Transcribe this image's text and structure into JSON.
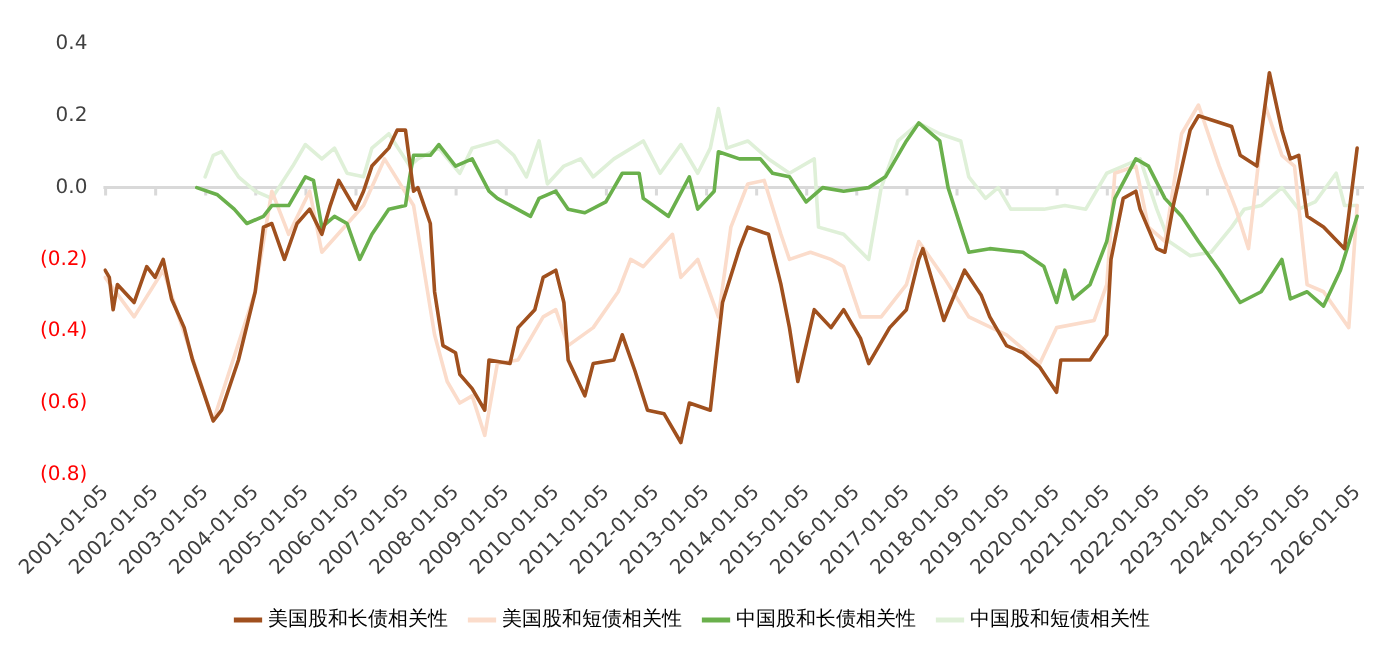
{
  "chart_data": {
    "type": "line",
    "xlim": [
      "2000-12-20",
      "2026-02-20"
    ],
    "xticks": [
      "2001-01-05",
      "2002-01-05",
      "2003-01-05",
      "2004-01-05",
      "2005-01-05",
      "2006-01-05",
      "2007-01-05",
      "2008-01-05",
      "2009-01-05",
      "2010-01-05",
      "2011-01-05",
      "2012-01-05",
      "2013-01-05",
      "2014-01-05",
      "2015-01-05",
      "2016-01-05",
      "2017-01-05",
      "2018-01-05",
      "2019-01-05",
      "2020-01-05",
      "2021-01-05",
      "2022-01-05",
      "2023-01-05",
      "2024-01-05",
      "2025-01-05",
      "2026-01-05"
    ],
    "ylim": [
      -0.8,
      0.4
    ],
    "yticks": [
      0.4,
      0.2,
      {
        "value": 0,
        "label": "0.0"
      },
      {
        "value": -0.2,
        "label": "(0.2)"
      },
      {
        "value": -0.4,
        "label": "(0.4)"
      },
      {
        "value": -0.6,
        "label": "(0.6)"
      },
      {
        "value": -0.8,
        "label": "(0.8)"
      }
    ],
    "grid": false,
    "ref_lines": [
      {
        "axis": "y",
        "value": 0,
        "color": "#d9d9d9"
      }
    ],
    "legend": "bottom",
    "marker": "none",
    "line_style": "solid",
    "series": [
      {
        "name": "美国股和长债相关性",
        "color": "#a0501e",
        "x": [
          "2001-01",
          "2001-02",
          "2001-03",
          "2001-04",
          "2001-08",
          "2001-11",
          "2002-01",
          "2002-03",
          "2002-05",
          "2002-08",
          "2002-10",
          "2003-03",
          "2003-05",
          "2003-09",
          "2004-01",
          "2004-03",
          "2004-05",
          "2004-08",
          "2004-11",
          "2005-02",
          "2005-05",
          "2005-07",
          "2005-09",
          "2006-01",
          "2006-03",
          "2006-05",
          "2006-09",
          "2006-11",
          "2007-01",
          "2007-03",
          "2007-04",
          "2007-07",
          "2007-08",
          "2007-10",
          "2008-01",
          "2008-02",
          "2008-05",
          "2008-08",
          "2008-09",
          "2009-02",
          "2009-04",
          "2009-08",
          "2009-10",
          "2010-01",
          "2010-03",
          "2010-04",
          "2010-08",
          "2010-10",
          "2011-03",
          "2011-05",
          "2011-08",
          "2011-11",
          "2012-03",
          "2012-07",
          "2012-09",
          "2013-02",
          "2013-05",
          "2013-09",
          "2013-11",
          "2014-04",
          "2014-07",
          "2014-09",
          "2014-11",
          "2015-03",
          "2015-07",
          "2015-10",
          "2016-02",
          "2016-04",
          "2016-09",
          "2017-01",
          "2017-04",
          "2017-05",
          "2017-10",
          "2018-03",
          "2018-07",
          "2018-09",
          "2019-01",
          "2019-05",
          "2019-09",
          "2020-01",
          "2020-02",
          "2020-09",
          "2021-01",
          "2021-02",
          "2021-05",
          "2021-08",
          "2021-09",
          "2022-01",
          "2022-03",
          "2022-05",
          "2022-09",
          "2022-11",
          "2023-07",
          "2023-09",
          "2024-01",
          "2024-04",
          "2024-07",
          "2024-09",
          "2024-11",
          "2025-01",
          "2025-05",
          "2025-10",
          "2026-01"
        ],
        "values": [
          -0.23,
          -0.25,
          -0.34,
          -0.27,
          -0.32,
          -0.22,
          -0.25,
          -0.2,
          -0.31,
          -0.39,
          -0.48,
          -0.65,
          -0.62,
          -0.48,
          -0.29,
          -0.11,
          -0.1,
          -0.2,
          -0.1,
          -0.06,
          -0.13,
          -0.05,
          0.02,
          -0.06,
          -0.01,
          0.06,
          0.11,
          0.16,
          0.16,
          -0.01,
          0,
          -0.1,
          -0.29,
          -0.44,
          -0.46,
          -0.52,
          -0.56,
          -0.62,
          -0.48,
          -0.49,
          -0.39,
          -0.34,
          -0.25,
          -0.23,
          -0.32,
          -0.48,
          -0.58,
          -0.49,
          -0.48,
          -0.41,
          -0.51,
          -0.62,
          -0.63,
          -0.71,
          -0.6,
          -0.62,
          -0.32,
          -0.17,
          -0.11,
          -0.13,
          -0.27,
          -0.39,
          -0.54,
          -0.34,
          -0.39,
          -0.34,
          -0.42,
          -0.49,
          -0.39,
          -0.34,
          -0.2,
          -0.17,
          -0.37,
          -0.23,
          -0.3,
          -0.36,
          -0.44,
          -0.46,
          -0.5,
          -0.57,
          -0.48,
          -0.48,
          -0.41,
          -0.2,
          -0.03,
          -0.01,
          -0.06,
          -0.17,
          -0.18,
          -0.05,
          0.16,
          0.2,
          0.17,
          0.09,
          0.06,
          0.32,
          0.16,
          0.08,
          0.09,
          -0.08,
          -0.11,
          -0.17,
          0.11
        ]
      },
      {
        "name": "美国股和短债相关性",
        "color": "#fbdccb",
        "x": [
          "2001-01",
          "2001-08",
          "2002-03",
          "2002-09",
          "2003-03",
          "2004-01",
          "2004-05",
          "2004-09",
          "2005-02",
          "2005-05",
          "2006-03",
          "2006-08",
          "2007-03",
          "2007-08",
          "2007-11",
          "2008-02",
          "2008-05",
          "2008-08",
          "2008-11",
          "2009-04",
          "2009-10",
          "2010-01",
          "2010-04",
          "2010-10",
          "2011-04",
          "2011-07",
          "2011-10",
          "2012-05",
          "2012-07",
          "2012-11",
          "2013-04",
          "2013-07",
          "2013-11",
          "2014-03",
          "2014-07",
          "2014-09",
          "2015-02",
          "2015-07",
          "2015-10",
          "2016-02",
          "2016-07",
          "2017-01",
          "2017-04",
          "2017-10",
          "2018-04",
          "2019-01",
          "2019-09",
          "2020-01",
          "2020-10",
          "2021-01",
          "2021-03",
          "2021-08",
          "2021-11",
          "2022-03",
          "2022-07",
          "2022-11",
          "2023-04",
          "2023-08",
          "2023-11",
          "2024-03",
          "2024-07",
          "2024-10",
          "2025-01",
          "2025-05",
          "2025-11",
          "2026-01"
        ],
        "values": [
          -0.25,
          -0.36,
          -0.23,
          -0.44,
          -0.65,
          -0.29,
          -0.01,
          -0.13,
          -0.01,
          -0.18,
          -0.05,
          0.08,
          -0.05,
          -0.41,
          -0.54,
          -0.6,
          -0.58,
          -0.69,
          -0.49,
          -0.48,
          -0.36,
          -0.34,
          -0.44,
          -0.39,
          -0.29,
          -0.2,
          -0.22,
          -0.13,
          -0.25,
          -0.2,
          -0.36,
          -0.11,
          0.01,
          0.02,
          -0.13,
          -0.2,
          -0.18,
          -0.2,
          -0.22,
          -0.36,
          -0.36,
          -0.27,
          -0.15,
          -0.25,
          -0.36,
          -0.41,
          -0.49,
          -0.39,
          -0.37,
          -0.27,
          0.04,
          0.06,
          -0.11,
          -0.15,
          0.15,
          0.23,
          0.06,
          -0.06,
          -0.17,
          0.23,
          0.09,
          0.06,
          -0.27,
          -0.29,
          -0.39,
          -0.05
        ]
      },
      {
        "name": "中国股和长债相关性",
        "color": "#6ab04c",
        "x": [
          "2002-11",
          "2003-04",
          "2003-08",
          "2003-11",
          "2004-03",
          "2004-05",
          "2004-09",
          "2005-01",
          "2005-03",
          "2005-05",
          "2005-08",
          "2005-11",
          "2006-02",
          "2006-05",
          "2006-09",
          "2007-01",
          "2007-02",
          "2007-03",
          "2007-07",
          "2007-09",
          "2008-01",
          "2008-05",
          "2008-09",
          "2008-11",
          "2009-07",
          "2009-09",
          "2010-01",
          "2010-04",
          "2010-08",
          "2011-01",
          "2011-05",
          "2011-09",
          "2011-10",
          "2012-04",
          "2012-09",
          "2012-11",
          "2013-03",
          "2013-04",
          "2013-09",
          "2014-02",
          "2014-05",
          "2014-09",
          "2015-01",
          "2015-05",
          "2015-10",
          "2016-04",
          "2016-08",
          "2017-01",
          "2017-04",
          "2017-09",
          "2017-11",
          "2018-04",
          "2018-09",
          "2019-05",
          "2019-10",
          "2020-01",
          "2020-03",
          "2020-05",
          "2020-09",
          "2021-01",
          "2021-03",
          "2021-08",
          "2021-11",
          "2022-03",
          "2022-07",
          "2022-11",
          "2023-04",
          "2023-09",
          "2024-02",
          "2024-07",
          "2024-09",
          "2025-01",
          "2025-05",
          "2025-09",
          "2026-01"
        ],
        "values": [
          0.0,
          -0.02,
          -0.06,
          -0.1,
          -0.08,
          -0.05,
          -0.05,
          0.03,
          0.02,
          -0.11,
          -0.08,
          -0.1,
          -0.2,
          -0.13,
          -0.06,
          -0.05,
          0.03,
          0.09,
          0.09,
          0.12,
          0.06,
          0.08,
          -0.01,
          -0.03,
          -0.08,
          -0.03,
          -0.01,
          -0.06,
          -0.07,
          -0.04,
          0.04,
          0.04,
          -0.03,
          -0.08,
          0.03,
          -0.06,
          -0.01,
          0.1,
          0.08,
          0.08,
          0.04,
          0.03,
          -0.04,
          0.0,
          -0.01,
          0.0,
          0.03,
          0.13,
          0.18,
          0.13,
          0.0,
          -0.18,
          -0.17,
          -0.18,
          -0.22,
          -0.32,
          -0.23,
          -0.31,
          -0.27,
          -0.15,
          -0.03,
          0.08,
          0.06,
          -0.03,
          -0.08,
          -0.15,
          -0.23,
          -0.32,
          -0.29,
          -0.2,
          -0.31,
          -0.29,
          -0.33,
          -0.23,
          -0.08
        ]
      },
      {
        "name": "中国股和短债相关性",
        "color": "#dff0d8",
        "x": [
          "2003-01",
          "2003-03",
          "2003-05",
          "2003-09",
          "2004-01",
          "2004-05",
          "2004-10",
          "2005-01",
          "2005-05",
          "2005-08",
          "2005-11",
          "2006-03",
          "2006-05",
          "2006-09",
          "2007-02",
          "2007-04",
          "2007-09",
          "2008-02",
          "2008-05",
          "2008-11",
          "2009-03",
          "2009-06",
          "2009-09",
          "2009-11",
          "2010-03",
          "2010-07",
          "2010-10",
          "2011-03",
          "2011-10",
          "2012-02",
          "2012-07",
          "2012-11",
          "2013-02",
          "2013-04",
          "2013-06",
          "2013-11",
          "2014-04",
          "2014-09",
          "2015-03",
          "2015-04",
          "2015-10",
          "2016-04",
          "2016-07",
          "2016-11",
          "2017-04",
          "2017-09",
          "2018-02",
          "2018-04",
          "2018-08",
          "2018-11",
          "2019-02",
          "2019-10",
          "2020-03",
          "2020-08",
          "2021-01",
          "2021-05",
          "2021-09",
          "2022-01",
          "2022-04",
          "2022-09",
          "2023-02",
          "2023-07",
          "2023-10",
          "2024-02",
          "2024-07",
          "2024-11",
          "2025-03",
          "2025-08",
          "2025-10",
          "2026-01"
        ],
        "values": [
          0.03,
          0.09,
          0.1,
          0.03,
          -0.01,
          -0.03,
          0.06,
          0.12,
          0.08,
          0.11,
          0.04,
          0.03,
          0.11,
          0.15,
          0.06,
          0.08,
          0.11,
          0.04,
          0.11,
          0.13,
          0.09,
          0.03,
          0.13,
          0.01,
          0.06,
          0.08,
          0.03,
          0.08,
          0.13,
          0.04,
          0.12,
          0.04,
          0.11,
          0.22,
          0.11,
          0.13,
          0.08,
          0.04,
          0.08,
          -0.11,
          -0.13,
          -0.2,
          0.0,
          0.13,
          0.18,
          0.15,
          0.13,
          0.03,
          -0.03,
          0.0,
          -0.06,
          -0.06,
          -0.05,
          -0.06,
          0.04,
          0.06,
          0.08,
          -0.06,
          -0.15,
          -0.19,
          -0.18,
          -0.11,
          -0.06,
          -0.05,
          0.0,
          -0.06,
          -0.04,
          0.04,
          -0.05,
          -0.05
        ]
      }
    ]
  }
}
